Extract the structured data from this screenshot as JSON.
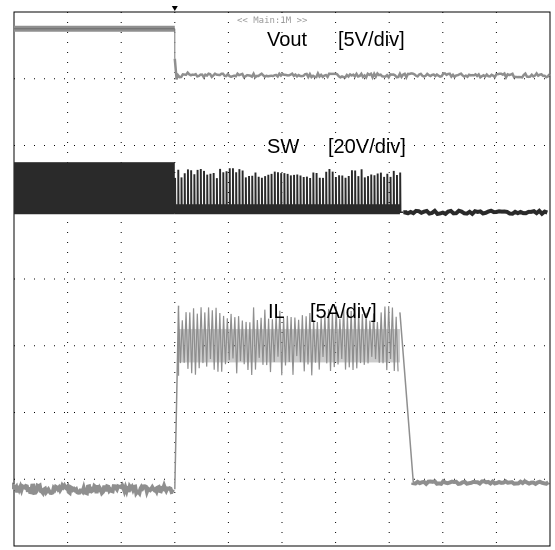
{
  "header": {
    "timebase_tag": "<< Main:1M >>"
  },
  "colors": {
    "gray_trace": "#8f8f8f",
    "dark_trace": "#2a2a2a",
    "grid": "#000000"
  },
  "chart_data": {
    "type": "line",
    "title": "",
    "xlabel": "",
    "ylabel": "",
    "grid": true,
    "grid_divisions": {
      "x": 10,
      "y": 8
    },
    "xlim": [
      0,
      10
    ],
    "ylim": [
      0,
      8
    ],
    "series": [
      {
        "name": "Vout",
        "label": "Vout",
        "scale": "[5V/div]",
        "x": [
          0,
          3.0,
          3.0,
          3.03,
          3.25,
          6.0,
          10
        ],
        "y": [
          7.75,
          7.75,
          7.3,
          7.02,
          7.08,
          7.05,
          7.02
        ]
      },
      {
        "name": "SW",
        "label": "SW",
        "scale": "[20V/div]",
        "x": [
          0,
          3.0,
          3.0,
          7.2,
          7.3,
          10
        ],
        "y": [
          5.0,
          5.0,
          5.1,
          5.1,
          5.0,
          5.0
        ],
        "switching_high_y": 5.75,
        "switching_bursty_high_y": 5.65,
        "switching_end_x": 7.2
      },
      {
        "name": "IL",
        "label": "IL",
        "scale": "[5A/div]",
        "x": [
          0,
          3.0,
          3.07,
          7.2,
          7.45,
          10
        ],
        "y": [
          0.85,
          0.85,
          3.0,
          3.0,
          0.95,
          0.95
        ],
        "ripple_band": [
          2.55,
          3.6
        ]
      }
    ]
  }
}
